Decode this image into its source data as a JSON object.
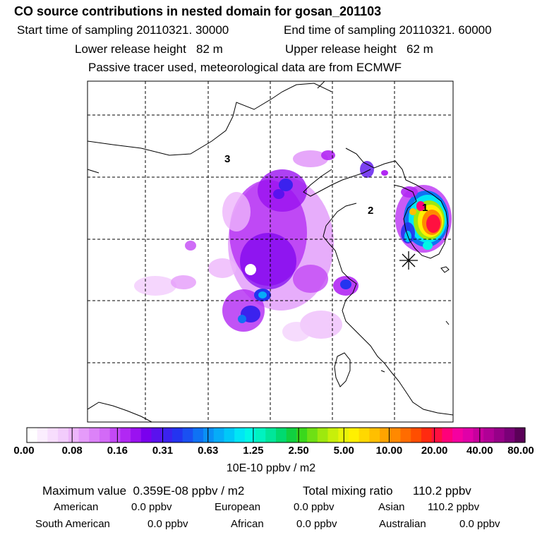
{
  "header": {
    "title": "CO  source contributions in nested domain for gosan_201103",
    "start_label": "Start time of sampling",
    "start_value": "20110321. 30000",
    "end_label": "End time of sampling",
    "end_value": "20110321. 60000",
    "lower_label": "Lower release height",
    "lower_value": "82 m",
    "upper_label": "Upper release height",
    "upper_value": "62 m",
    "tracer_note": "Passive tracer used, meteorological data are from ECMWF"
  },
  "map": {
    "region_labels": [
      "1",
      "2",
      "3"
    ],
    "receptor_marker": "asterisk-icon"
  },
  "chart_data": {
    "type": "heatmap",
    "colorbar": {
      "unit": "10E-10 ppbv / m2",
      "tick_labels": [
        "0.00",
        "0.08",
        "0.16",
        "0.31",
        "0.63",
        "1.25",
        "2.50",
        "5.00",
        "10.00",
        "20.00",
        "40.00",
        "80.00"
      ],
      "colors": [
        "#ffffff",
        "#fbeefe",
        "#f7ddfd",
        "#f2ccfc",
        "#edb5fb",
        "#e59bfa",
        "#dc82f8",
        "#d36af7",
        "#c349f5",
        "#b128f3",
        "#9a12f0",
        "#7a00ee",
        "#5a12ee",
        "#3b22ee",
        "#2434f0",
        "#1a50f2",
        "#0f72f4",
        "#0a90f6",
        "#06acf8",
        "#00c8f8",
        "#00e6f5",
        "#00f8e6",
        "#00f2c0",
        "#00e69a",
        "#00da70",
        "#10d040",
        "#3ad81c",
        "#6ee014",
        "#9ee80e",
        "#c8ef0a",
        "#e8f408",
        "#fff000",
        "#ffd800",
        "#ffbf00",
        "#ffa400",
        "#ff8900",
        "#ff6c00",
        "#ff4e00",
        "#ff2a10",
        "#ff1040",
        "#ff007a",
        "#f500a0",
        "#e000a8",
        "#c8009e",
        "#b00096",
        "#960088",
        "#7a0078",
        "#5a0058"
      ],
      "max_value": "0.359E-08 ppbv / m2"
    },
    "total_mixing_label": "Total mixing ratio",
    "total_mixing_value": "110.2 ppbv",
    "max_label": "Maximum value",
    "contributions": [
      {
        "region": "American",
        "value": "0.0 ppbv"
      },
      {
        "region": "European",
        "value": "0.0 ppbv"
      },
      {
        "region": "Asian",
        "value": "110.2 ppbv"
      },
      {
        "region": "South American",
        "value": "0.0 ppbv"
      },
      {
        "region": "African",
        "value": "0.0 ppbv"
      },
      {
        "region": "Australian",
        "value": "0.0 ppbv"
      }
    ]
  }
}
